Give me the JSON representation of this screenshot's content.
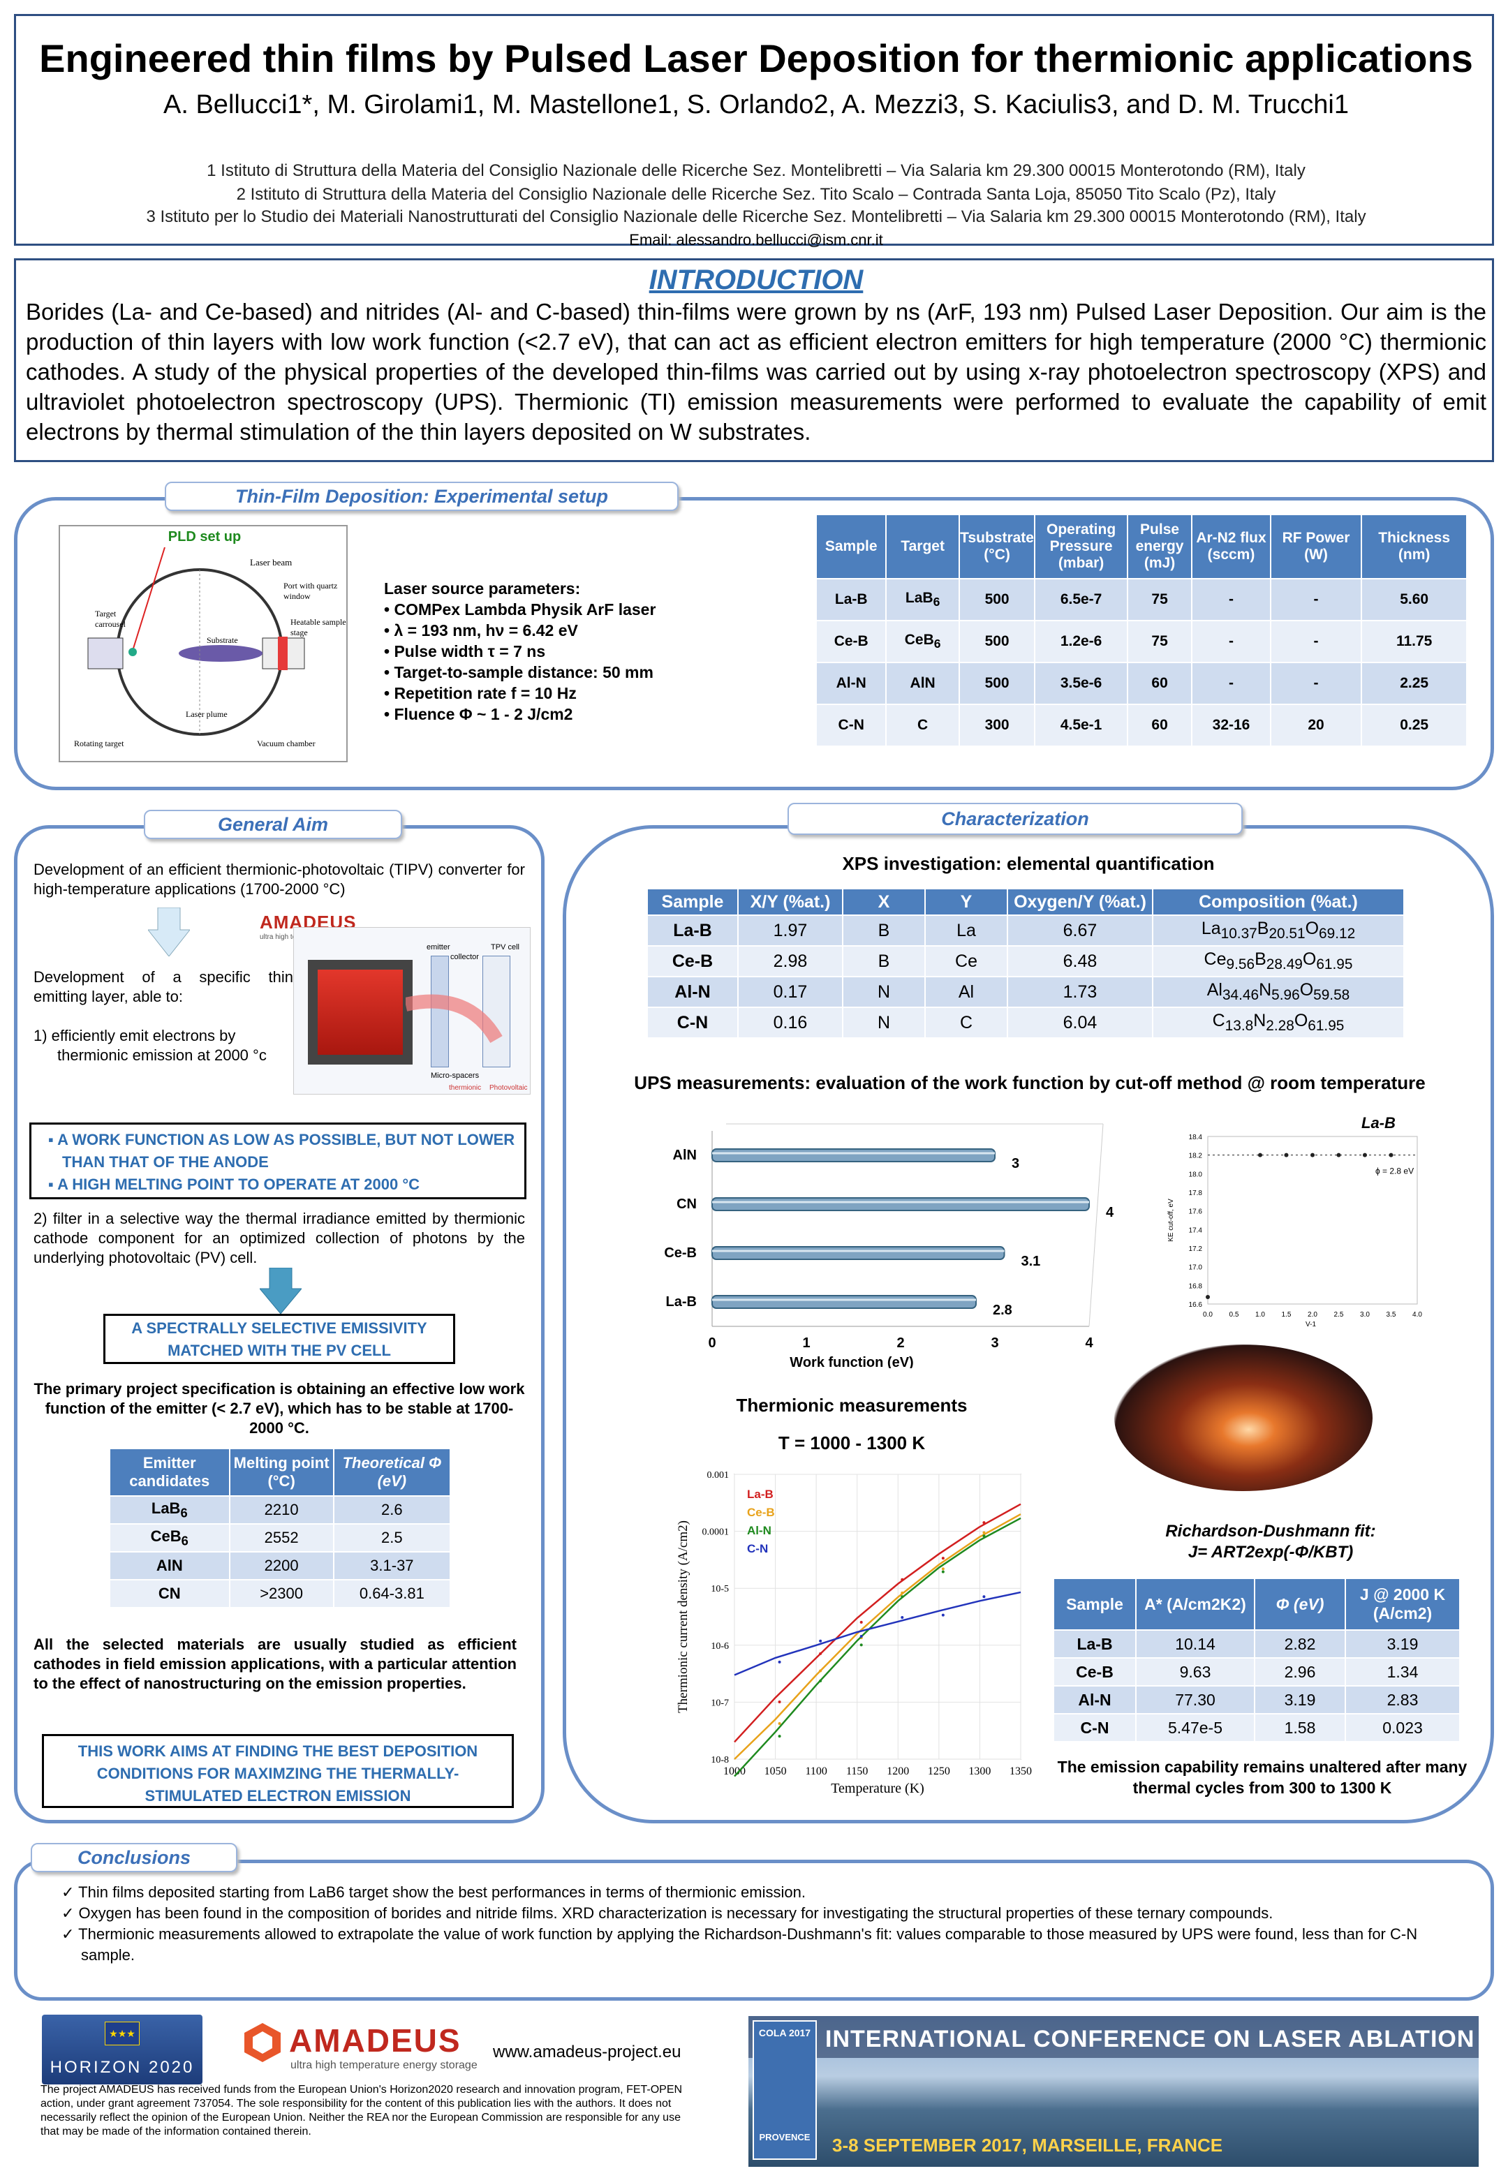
{
  "header": {
    "title": "Engineered thin films by Pulsed Laser Deposition for thermionic applications",
    "authors": "A. Bellucci1*, M. Girolami1, M. Mastellone1, S. Orlando2, A. Mezzi3, S. Kaciulis3, and D. M. Trucchi1",
    "aff1": "1 Istituto di Struttura della Materia del Consiglio Nazionale delle Ricerche Sez. Montelibretti – Via Salaria km 29.300 00015 Monterotondo (RM), Italy",
    "aff2": "2 Istituto di Struttura della Materia del Consiglio Nazionale delle Ricerche Sez. Tito Scalo – Contrada Santa Loja, 85050 Tito Scalo (Pz), Italy",
    "aff3": "3 Istituto per lo Studio dei Materiali Nanostrutturati del Consiglio Nazionale delle Ricerche Sez. Montelibretti – Via Salaria km 29.300 00015 Monterotondo (RM), Italy",
    "email": "Email: alessandro.bellucci@ism.cnr.it"
  },
  "intro": {
    "heading": "INTRODUCTION",
    "text": "Borides (La- and Ce-based) and nitrides (Al- and C-based) thin-films were grown by ns (ArF, 193 nm) Pulsed Laser Deposition. Our aim is the production of thin layers with low work function (<2.7 eV), that can act as efficient electron emitters for high temperature (2000 °C) thermionic cathodes. A study of the physical properties of the developed thin-films was carried out by using x-ray photoelectron spectroscopy (XPS) and ultraviolet photoelectron spectroscopy (UPS). Thermionic (TI) emission measurements were performed to evaluate the capability of emit electrons by thermal stimulation of the thin layers deposited on W substrates."
  },
  "setup": {
    "tab": "Thin-Film Deposition: Experimental setup",
    "pld_label": "PLD set up",
    "diagram_labels": [
      "Laser beam",
      "Port with quartz window",
      "Target carrousel",
      "Heatable sample stage",
      "Substrate",
      "Laser plume",
      "Rotating target",
      "Vacuum chamber"
    ],
    "laser_heading": "Laser source parameters:",
    "laser_params": [
      "COMPex Lambda Physik ArF laser",
      "λ = 193 nm, hν = 6.42 eV",
      "Pulse width τ = 7 ns",
      "Target-to-sample distance: 50 mm",
      "Repetition rate f = 10 Hz",
      "Fluence Φ ~ 1 - 2 J/cm2"
    ],
    "headers": [
      "Sample",
      "Target",
      "Tsubstrate (°C)",
      "Operating Pressure (mbar)",
      "Pulse energy (mJ)",
      "Ar-N2 flux (sccm)",
      "RF Power (W)",
      "Thickness (nm)"
    ],
    "rows": [
      [
        "La-B",
        "LaB6",
        "500",
        "6.5e-7",
        "75",
        "-",
        "-",
        "5.60"
      ],
      [
        "Ce-B",
        "CeB6",
        "500",
        "1.2e-6",
        "75",
        "-",
        "-",
        "11.75"
      ],
      [
        "Al-N",
        "AlN",
        "500",
        "3.5e-6",
        "60",
        "-",
        "-",
        "2.25"
      ],
      [
        "C-N",
        "C",
        "300",
        "4.5e-1",
        "60",
        "32-16",
        "20",
        "0.25"
      ]
    ]
  },
  "aim": {
    "tab": "General Aim",
    "p1": "Development of an efficient thermionic-photovoltaic (TIPV) converter for high-temperature applications (1700-2000 °C)",
    "p2": "Development of a specific thin emitting layer, able to:",
    "p3": "1) efficiently emit electrons by thermionic emission at 2000 °c",
    "amadeus_logo": "AMADEUS",
    "amadeus_sub": "ultra high temperature energy storage",
    "device_labels": [
      "emitter",
      "collector",
      "TPV cell",
      "Micro-spacers",
      "thermionic",
      "Photovoltaic"
    ],
    "box1": [
      "A WORK FUNCTION AS LOW AS POSSIBLE, BUT NOT LOWER THAN THAT OF THE ANODE",
      "A HIGH MELTING POINT TO OPERATE AT 2000 °C"
    ],
    "p4": "2) filter in a selective way the thermal irradiance emitted by thermionic cathode component for an optimized collection of photons by the underlying photovoltaic (PV) cell.",
    "box2": "A SPECTRALLY SELECTIVE EMISSIVITY MATCHED WITH THE PV CELL",
    "spec": "The primary project specification is obtaining an effective low work function of the emitter (< 2.7 eV), which has to be stable at 1700-2000 °C.",
    "cand_headers": [
      "Emitter candidates",
      "Melting point (°C)",
      "Theoretical Φ (eV)"
    ],
    "cand_rows": [
      [
        "LaB6",
        "2210",
        "2.6"
      ],
      [
        "CeB6",
        "2552",
        "2.5"
      ],
      [
        "AlN",
        "2200",
        "3.1-37"
      ],
      [
        "CN",
        ">2300",
        "0.64-3.81"
      ]
    ],
    "p5": "All the selected materials are usually studied as efficient cathodes in field emission applications, with a particular attention to the effect of nanostructuring on the emission properties.",
    "box3": "THIS WORK AIMS AT FINDING THE BEST DEPOSITION CONDITIONS FOR MAXIMZING THE THERMALLY-STIMULATED ELECTRON EMISSION"
  },
  "char": {
    "tab": "Characterization",
    "xps_title": "XPS investigation: elemental quantification",
    "xps_headers": [
      "Sample",
      "X/Y (%at.)",
      "X",
      "Y",
      "Oxygen/Y (%at.)",
      "Composition (%at.)"
    ],
    "xps_rows": [
      [
        "La-B",
        "1.97",
        "B",
        "La",
        "6.67",
        "La10.37B20.51O69.12"
      ],
      [
        "Ce-B",
        "2.98",
        "B",
        "Ce",
        "6.48",
        "Ce9.56B28.49O61.95"
      ],
      [
        "Al-N",
        "0.17",
        "N",
        "Al",
        "1.73",
        "Al34.46N5.96O59.58"
      ],
      [
        "C-N",
        "0.16",
        "N",
        "C",
        "6.04",
        "C13.8N2.28O61.95"
      ]
    ],
    "ups_title": "UPS measurements: evaluation of the work function by cut-off method @ room temperature",
    "inset_title": "La-B",
    "inset_note": "ϕ = 2.8 eV",
    "th_title": "Thermionic measurements",
    "th_sub": "T = 1000 - 1300 K",
    "rd_title": "Richardson-Dushmann fit:",
    "rd_formula": "J= ART2exp(-Φ/KBT)",
    "rd_headers": [
      "Sample",
      "A* (A/cm2K2)",
      "Φ (eV)",
      "J @ 2000 K (A/cm2)"
    ],
    "rd_rows": [
      [
        "La-B",
        "10.14",
        "2.82",
        "3.19"
      ],
      [
        "Ce-B",
        "9.63",
        "2.96",
        "1.34"
      ],
      [
        "Al-N",
        "77.30",
        "3.19",
        "2.83"
      ],
      [
        "C-N",
        "5.47e-5",
        "1.58",
        "0.023"
      ]
    ],
    "rd_note": "The emission capability remains unaltered after many thermal cycles from 300 to 1300 K"
  },
  "conclusions": {
    "tab": "Conclusions",
    "items": [
      "Thin films deposited starting from LaB6 target show the best performances in terms of thermionic emission.",
      "Oxygen has been found in the composition of borides and nitride films. XRD characterization is necessary for investigating the structural properties of these ternary compounds.",
      "Thermionic measurements allowed to extrapolate the value of work function by applying the Richardson-Dushmann's fit: values comparable to those measured by UPS were found, less than for C-N sample."
    ]
  },
  "footer": {
    "horizon": "HORIZON 2020",
    "amadeus": "AMADEUS",
    "amadeus_sub": "ultra high temperature energy storage",
    "url": "www.amadeus-project.eu",
    "funding": "The project AMADEUS has received funds from the European Union's Horizon2020 research and innovation program, FET-OPEN action, under grant agreement 737054. The sole responsibility for the content of this publication lies with the authors. It does not necessarily reflect the opinion of the European Union. Neither the REA nor the European Commission are responsible for any use that may be made of the information contained therein.",
    "cola_badge": "COLA 2017",
    "cola_title": "INTERNATIONAL CONFERENCE ON LASER ABLATION",
    "cola_provence": "PROVENCE",
    "cola_dates": "3-8 SEPTEMBER 2017, MARSEILLE, FRANCE"
  },
  "chart_data": [
    {
      "type": "bar",
      "orientation": "horizontal",
      "title": "UPS measurements: evaluation of the work function by cut-off method @ room temperature",
      "categories": [
        "AlN",
        "CN",
        "Ce-B",
        "La-B"
      ],
      "values": [
        3,
        4,
        3.1,
        2.8
      ],
      "value_labels": [
        "3",
        "4",
        "3.1",
        "2.8"
      ],
      "xlabel": "Work function (eV)",
      "xlim": [
        0,
        4
      ],
      "xticks": [
        "0",
        "1",
        "2",
        "3",
        "4"
      ]
    },
    {
      "type": "scatter",
      "title": "La-B",
      "xlabel": "V-1",
      "ylabel": "KE cut-off, eV",
      "points": [
        [
          1.0,
          18.2
        ],
        [
          1.5,
          18.2
        ],
        [
          2.0,
          18.2
        ],
        [
          2.5,
          18.2
        ],
        [
          3.0,
          18.2
        ],
        [
          3.5,
          18.2
        ],
        [
          0.0,
          16.3
        ]
      ],
      "annotation": "ϕ = 2.8 eV",
      "xticks": [
        "0.0",
        "0.5",
        "1.0",
        "1.5",
        "2.0",
        "2.5",
        "3.0",
        "3.5",
        "4.0"
      ],
      "yticks": [
        "18.4",
        "18.2",
        "18.0",
        "17.8",
        "17.6",
        "17.4",
        "17.2",
        "17.0",
        "16.8",
        "16.6"
      ]
    },
    {
      "type": "line",
      "title": "Thermionic measurements",
      "xlabel": "Temperature (K)",
      "ylabel": "Thermionic current density (A/cm2)",
      "yscale": "log",
      "xlim": [
        1000,
        1350
      ],
      "ylim": [
        1e-08,
        0.001
      ],
      "xticks": [
        "1000",
        "1050",
        "1100",
        "1150",
        "1200",
        "1250",
        "1300",
        "1350"
      ],
      "yticks": [
        "0.001",
        "0.0001",
        "10-5",
        "10-6",
        "10-7",
        "10-8"
      ],
      "series": [
        {
          "name": "La-B",
          "color": "#d21f1f",
          "x": [
            1000,
            1050,
            1100,
            1150,
            1200,
            1250,
            1300,
            1350
          ],
          "y": [
            2e-08,
            1.2e-07,
            6e-07,
            3e-06,
            1.2e-05,
            4e-05,
            0.00012,
            0.0003
          ]
        },
        {
          "name": "Ce-B",
          "color": "#e8a21a",
          "x": [
            1000,
            1050,
            1100,
            1150,
            1200,
            1250,
            1300,
            1350
          ],
          "y": [
            1e-08,
            5e-08,
            3e-07,
            1.6e-06,
            7e-06,
            2.6e-05,
            8e-05,
            0.0002
          ]
        },
        {
          "name": "Al-N",
          "color": "#1f8a1f",
          "x": [
            1000,
            1050,
            1100,
            1150,
            1200,
            1250,
            1300,
            1350
          ],
          "y": [
            5e-09,
            3e-08,
            2e-07,
            1.2e-06,
            6e-06,
            2.3e-05,
            7e-05,
            0.00017
          ]
        },
        {
          "name": "C-N",
          "color": "#2233bb",
          "x": [
            1000,
            1050,
            1100,
            1150,
            1200,
            1250,
            1300,
            1350
          ],
          "y": [
            3e-07,
            6e-07,
            1e-06,
            1.7e-06,
            2.6e-06,
            4e-06,
            6e-06,
            8.5e-06
          ]
        }
      ]
    }
  ]
}
